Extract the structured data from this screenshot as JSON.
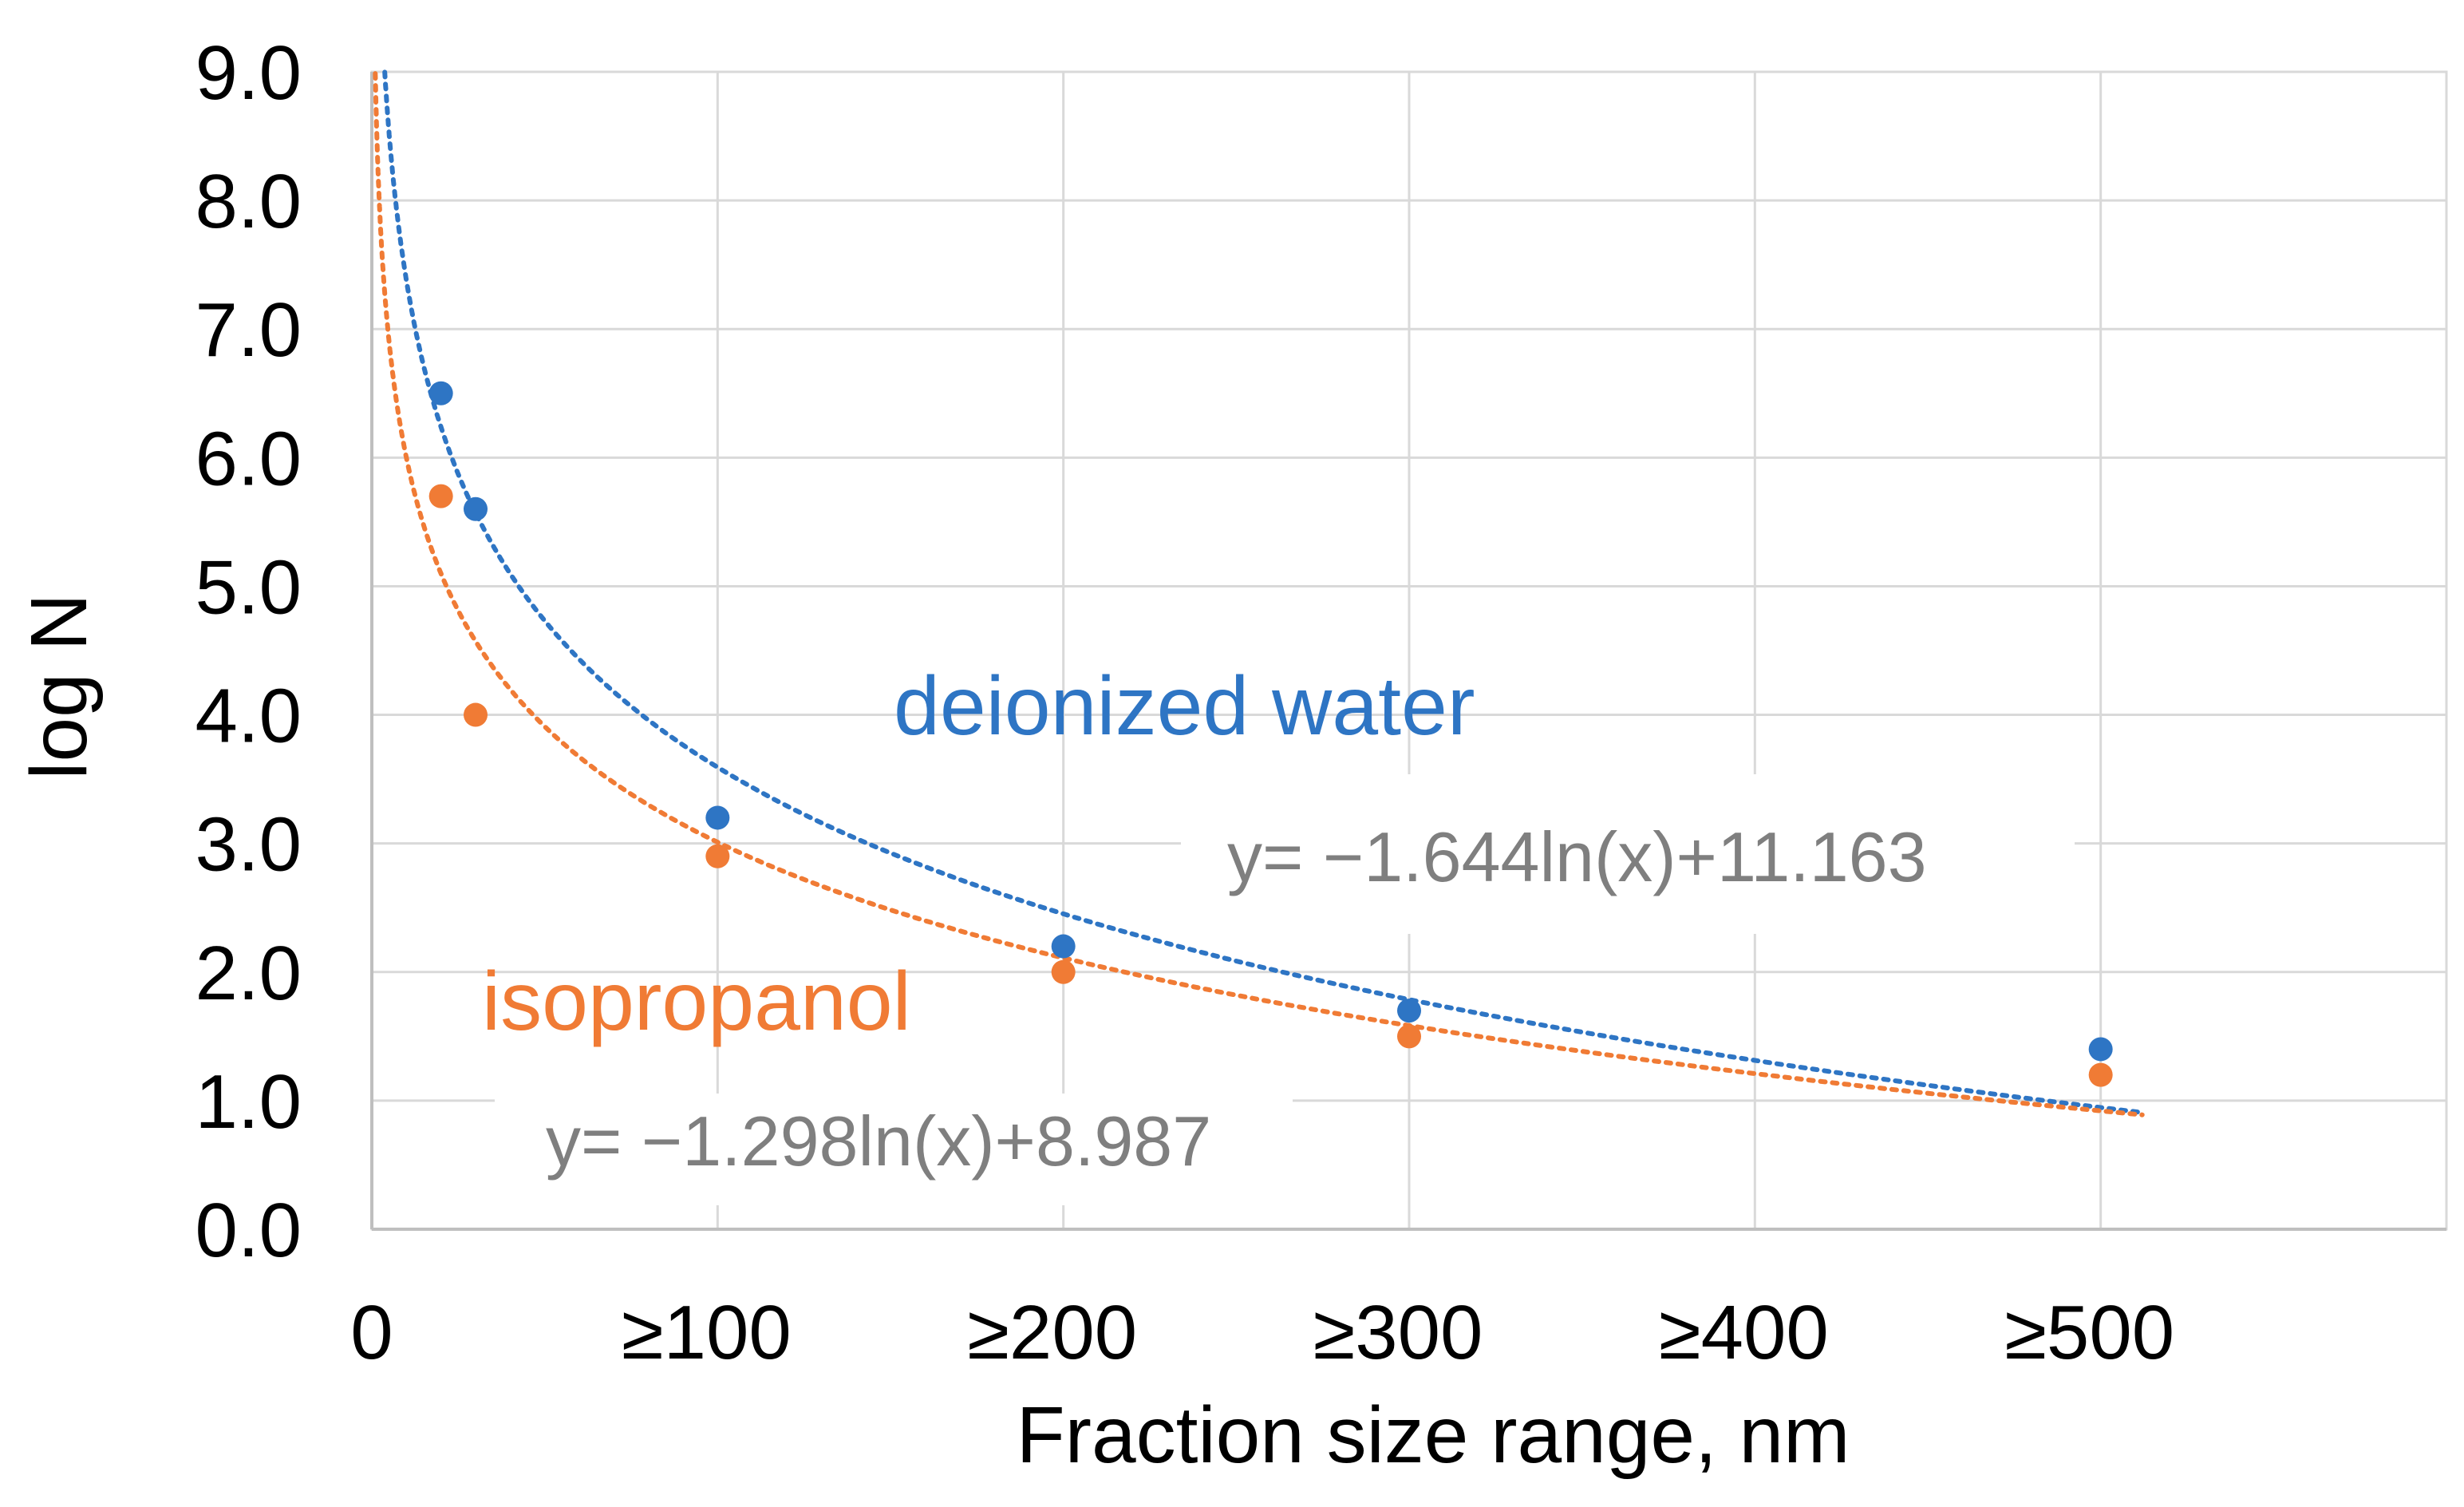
{
  "chart_data": {
    "type": "scatter",
    "title": "",
    "xlabel": "Fraction size range, nm",
    "ylabel": "log N",
    "xlim": [
      0,
      600
    ],
    "ylim": [
      0,
      9
    ],
    "grid": true,
    "y_ticks": [
      "0.0",
      "1.0",
      "2.0",
      "3.0",
      "4.0",
      "5.0",
      "6.0",
      "7.0",
      "8.0",
      "9.0"
    ],
    "x_ticks": [
      {
        "value": 0,
        "label": "0"
      },
      {
        "value": 100,
        "label": "≥100"
      },
      {
        "value": 200,
        "label": "≥200"
      },
      {
        "value": 300,
        "label": "≥300"
      },
      {
        "value": 400,
        "label": "≥400"
      },
      {
        "value": 500,
        "label": "≥500"
      }
    ],
    "series": [
      {
        "name": "deionized water",
        "color": "#2e75c4",
        "points": [
          {
            "x": 20,
            "y": 6.5
          },
          {
            "x": 30,
            "y": 5.6
          },
          {
            "x": 100,
            "y": 3.2
          },
          {
            "x": 200,
            "y": 2.2
          },
          {
            "x": 300,
            "y": 1.7
          },
          {
            "x": 500,
            "y": 1.4
          }
        ],
        "trendline": {
          "type": "logarithmic",
          "a": -1.644,
          "b": 11.163,
          "x_range": [
            3,
            512
          ]
        },
        "equation": "y= −1.644ln(x)+11.163"
      },
      {
        "name": "isopropanol",
        "color": "#f07b35",
        "points": [
          {
            "x": 20,
            "y": 5.7
          },
          {
            "x": 30,
            "y": 4.0
          },
          {
            "x": 100,
            "y": 2.9
          },
          {
            "x": 200,
            "y": 2.0
          },
          {
            "x": 300,
            "y": 1.5
          },
          {
            "x": 500,
            "y": 1.2
          }
        ],
        "trendline": {
          "type": "logarithmic",
          "a": -1.298,
          "b": 8.987,
          "x_range": [
            1,
            512
          ]
        },
        "equation": "y= −1.298ln(x)+8.987"
      }
    ]
  },
  "labels": {
    "water": "deionized water",
    "isopropanol": "isopropanol",
    "water_equation": "y= −1.644ln(x)+11.163",
    "isopropanol_equation": "y= −1.298ln(x)+8.987"
  }
}
